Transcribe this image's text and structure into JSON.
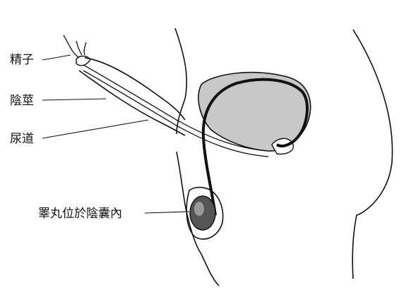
{
  "labels": {
    "sperm": "精子",
    "penis": "陰莖",
    "urethra": "尿道",
    "testis": "睪丸位於陰囊內"
  },
  "colors": {
    "ink": "#111111",
    "bladder_fill": "#c8c8c8",
    "testis_fill": "#555555",
    "background": "#ffffff"
  }
}
